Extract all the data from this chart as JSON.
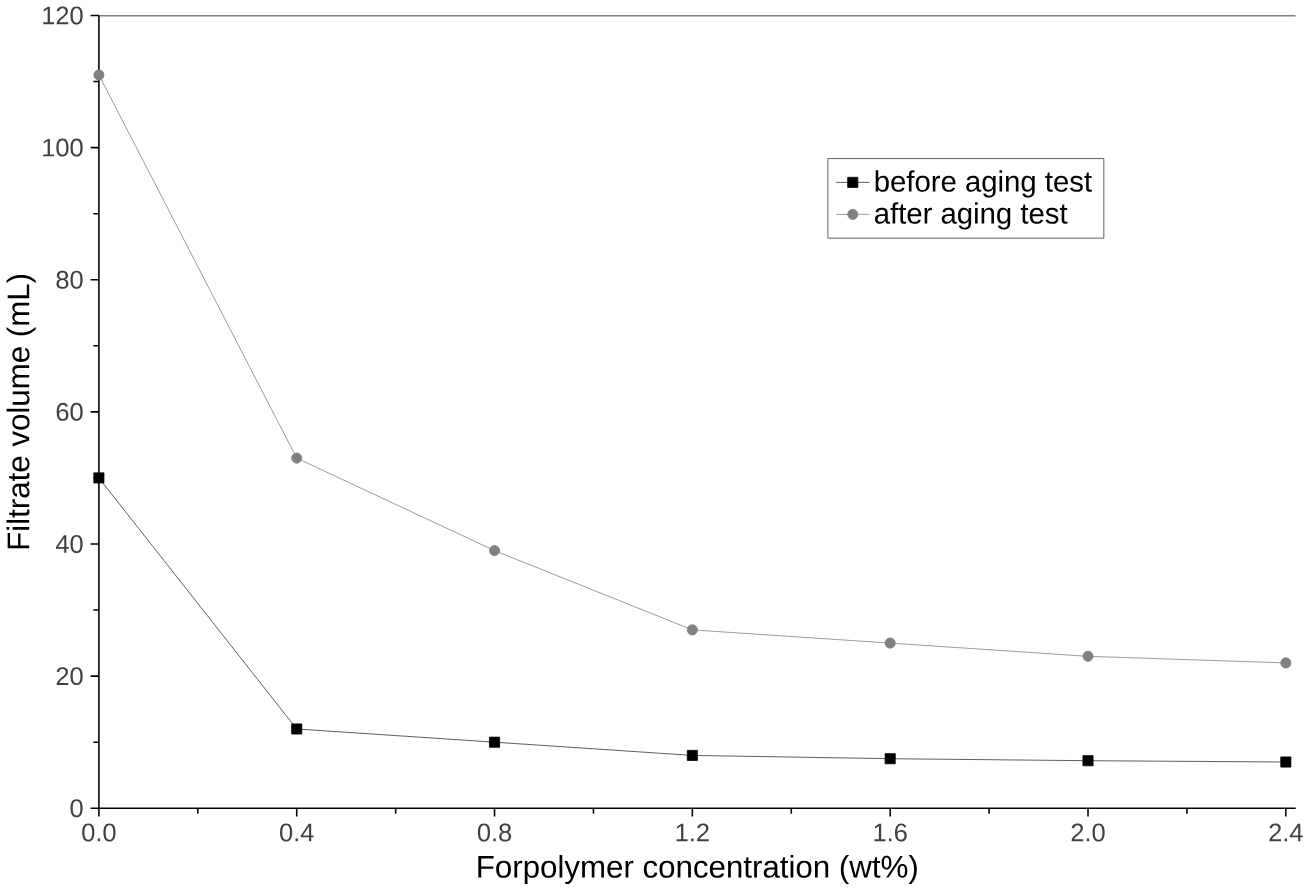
{
  "chart_data": {
    "type": "line",
    "xlabel": "Forpolymer concentration (wt%)",
    "ylabel": "Filtrate volume (mL)",
    "x": [
      0.0,
      0.4,
      0.8,
      1.2,
      1.6,
      2.0,
      2.4
    ],
    "series": [
      {
        "name": "before aging test",
        "color": "#000000",
        "marker": "square",
        "values": [
          50,
          12,
          10,
          8,
          7.5,
          7.2,
          7
        ]
      },
      {
        "name": "after aging test",
        "color": "#808080",
        "marker": "circle",
        "values": [
          111,
          53,
          39,
          27,
          25,
          23,
          22
        ]
      }
    ],
    "xlim": [
      0,
      2.42
    ],
    "ylim": [
      0,
      120
    ],
    "xticks": [
      {
        "value": 0,
        "label": "0.0"
      },
      0.4,
      0.8,
      1.2,
      1.6,
      {
        "value": 2,
        "label": "2.0"
      },
      2.4
    ],
    "yticks": [
      0,
      20,
      40,
      60,
      80,
      100,
      120
    ],
    "grid": false,
    "legend": "top right",
    "line_style": "solid"
  }
}
